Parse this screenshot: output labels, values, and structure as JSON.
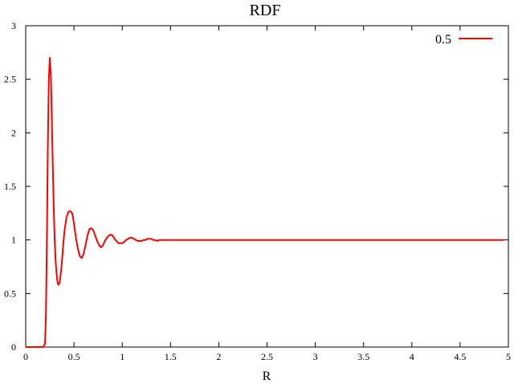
{
  "chart_data": {
    "type": "line",
    "title": "RDF",
    "xlabel": "R",
    "ylabel": "",
    "xlim": [
      0,
      5
    ],
    "ylim": [
      0,
      3
    ],
    "xticks": [
      "0",
      "0.5",
      "1",
      "1.5",
      "2",
      "2.5",
      "3",
      "3.5",
      "4",
      "4.5",
      "5"
    ],
    "yticks": [
      "0",
      "0.5",
      "1",
      "1.5",
      "2",
      "2.5",
      "3"
    ],
    "grid": false,
    "legend_position": "top-right",
    "series": [
      {
        "name": "0.5",
        "color": "#ff0000",
        "x": [
          0.0,
          0.1,
          0.15,
          0.18,
          0.2,
          0.21,
          0.22,
          0.23,
          0.24,
          0.25,
          0.26,
          0.27,
          0.28,
          0.29,
          0.3,
          0.31,
          0.32,
          0.33,
          0.34,
          0.35,
          0.36,
          0.37,
          0.38,
          0.39,
          0.4,
          0.42,
          0.44,
          0.46,
          0.48,
          0.49,
          0.5,
          0.52,
          0.54,
          0.56,
          0.58,
          0.6,
          0.62,
          0.64,
          0.66,
          0.68,
          0.7,
          0.72,
          0.74,
          0.76,
          0.78,
          0.8,
          0.82,
          0.84,
          0.86,
          0.88,
          0.9,
          0.92,
          0.94,
          0.96,
          0.98,
          1.0,
          1.02,
          1.04,
          1.06,
          1.08,
          1.1,
          1.12,
          1.14,
          1.16,
          1.18,
          1.2,
          1.22,
          1.24,
          1.26,
          1.28,
          1.3,
          1.32,
          1.34,
          1.36,
          1.38,
          1.4,
          1.42,
          1.45,
          1.5,
          1.55,
          1.6,
          1.65,
          1.7,
          1.8,
          1.9,
          2.0,
          2.2,
          2.4,
          2.6,
          2.8,
          3.0,
          3.2,
          3.4,
          3.6,
          3.8,
          4.0,
          4.2,
          4.4,
          4.6,
          4.8,
          4.95
        ],
        "y": [
          0,
          0,
          0,
          0,
          0.03,
          0.3,
          1.0,
          1.9,
          2.5,
          2.7,
          2.55,
          2.15,
          1.7,
          1.3,
          1.0,
          0.8,
          0.68,
          0.6,
          0.58,
          0.6,
          0.66,
          0.75,
          0.85,
          0.97,
          1.07,
          1.2,
          1.26,
          1.27,
          1.25,
          1.21,
          1.15,
          1.02,
          0.92,
          0.85,
          0.83,
          0.87,
          0.95,
          1.04,
          1.1,
          1.11,
          1.09,
          1.04,
          0.99,
          0.95,
          0.93,
          0.95,
          0.99,
          1.02,
          1.04,
          1.05,
          1.04,
          1.01,
          0.99,
          0.97,
          0.97,
          0.97,
          0.98,
          1.0,
          1.01,
          1.02,
          1.02,
          1.01,
          1.0,
          0.99,
          0.99,
          0.99,
          1.0,
          1.0,
          1.01,
          1.01,
          1.01,
          1.0,
          1.0,
          0.99,
          1.0,
          1.0,
          1.0,
          1.0,
          1.0,
          1.0,
          1.0,
          1.0,
          1.0,
          1.0,
          1.0,
          1.0,
          1.0,
          1.0,
          1.0,
          1.0,
          1.0,
          1.0,
          1.0,
          1.0,
          1.0,
          1.0,
          1.0,
          1.0,
          1.0,
          1.0,
          1.0
        ]
      }
    ]
  }
}
